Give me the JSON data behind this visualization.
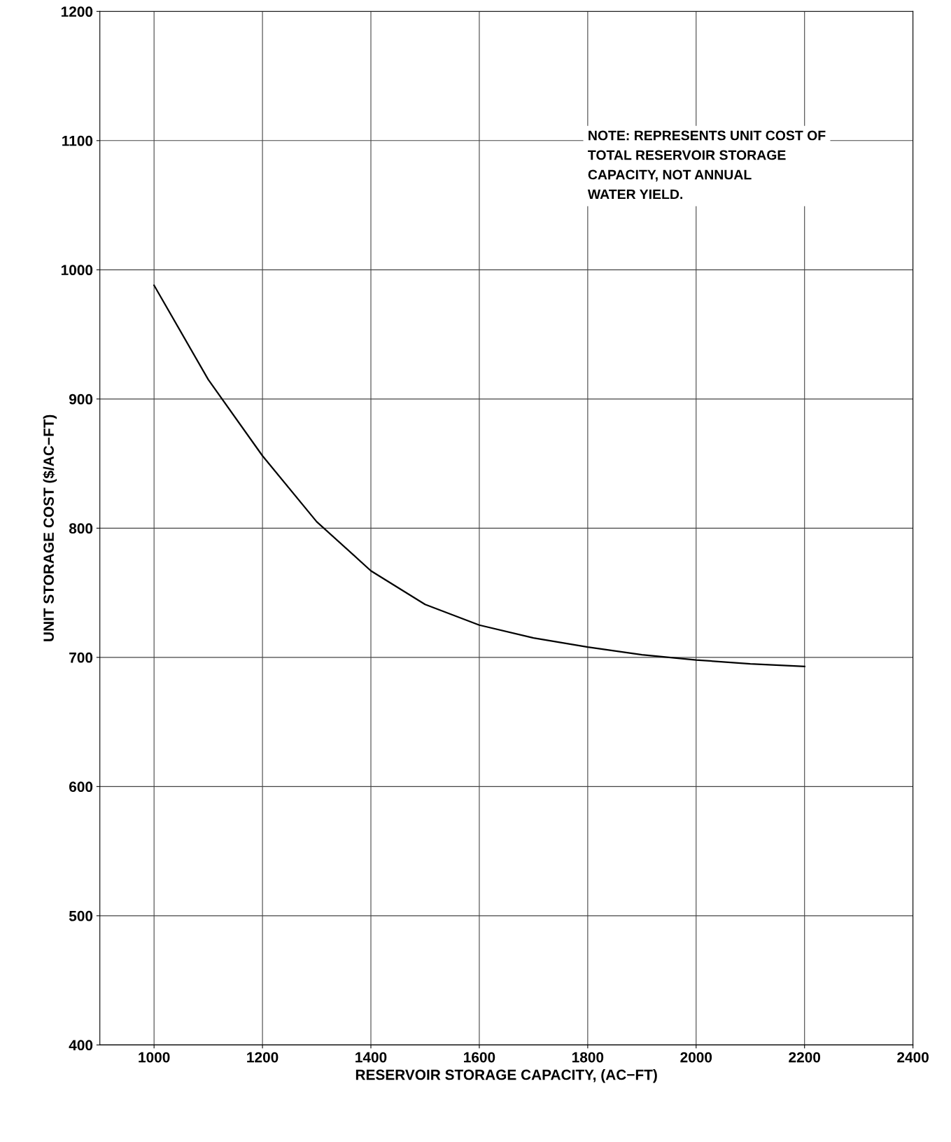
{
  "chart_data": {
    "type": "line",
    "xlabel": "RESERVOIR STORAGE CAPACITY, (AC−FT)",
    "ylabel": "UNIT STORAGE COST ($/AC−FT)",
    "x": [
      1000,
      1100,
      1200,
      1300,
      1400,
      1500,
      1600,
      1700,
      1800,
      1900,
      2000,
      2100,
      2200
    ],
    "series": [
      {
        "color": "#000000",
        "values": [
          988,
          915,
          856,
          805,
          767,
          741,
          725,
          715,
          708,
          702,
          698,
          695,
          693
        ]
      }
    ],
    "xlim": [
      900,
      2400
    ],
    "xticks": [
      1000,
      1200,
      1400,
      1600,
      1800,
      2000,
      2200,
      2400
    ],
    "ylim": [
      400,
      1200
    ],
    "yticks": [
      400,
      500,
      600,
      700,
      800,
      900,
      1000,
      1100,
      1200
    ],
    "grid": true,
    "marker": "none",
    "line_style": "solid",
    "annotations": [
      "NOTE: REPRESENTS UNIT COST OF\nTOTAL RESERVOIR STORAGE\nCAPACITY, NOT ANNUAL\nWATER YIELD."
    ]
  }
}
